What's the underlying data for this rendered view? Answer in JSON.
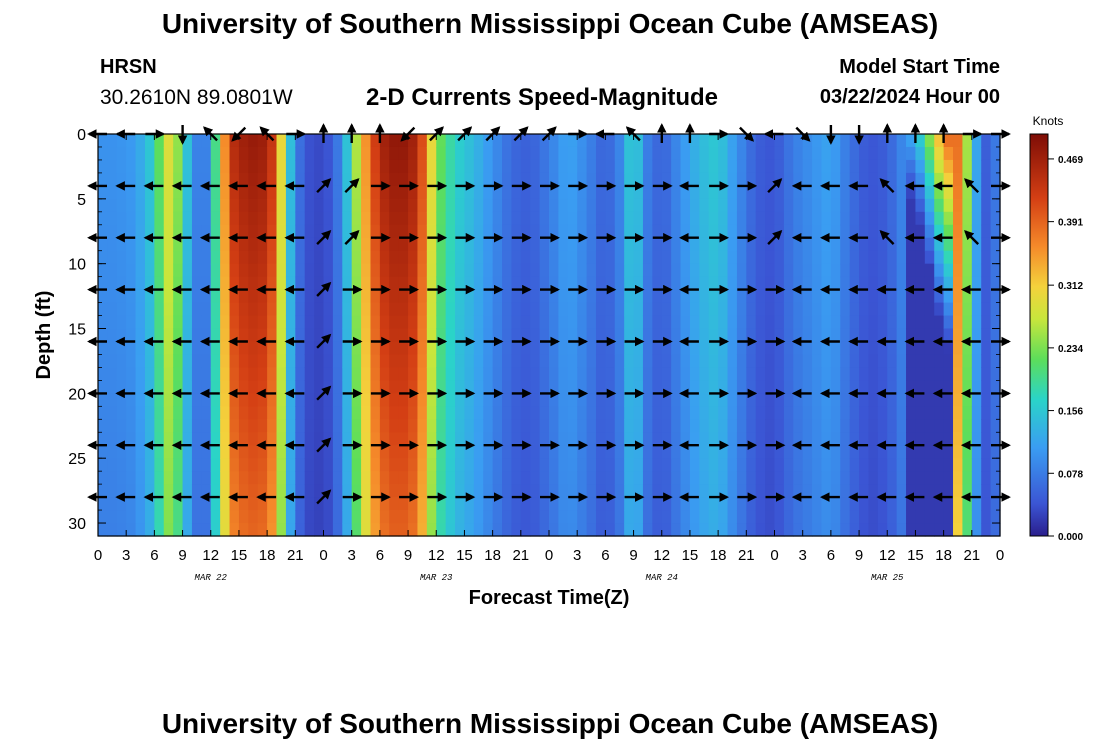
{
  "header": {
    "title": "University of Southern Mississippi Ocean Cube (AMSEAS)",
    "station": "HRSN",
    "coords": "30.2610N  89.0801W",
    "subtitle": "2-D Currents Speed-Magnitude",
    "model_start_label": "Model Start Time",
    "model_start_value": "03/22/2024 Hour 00"
  },
  "footer": {
    "title": "University of Southern Mississippi Ocean Cube (AMSEAS)"
  },
  "chart_data": {
    "type": "heatmap",
    "title": "2-D Currents Speed-Magnitude",
    "xlabel": "Forecast Time(Z)",
    "ylabel": "Depth (ft)",
    "xlim": [
      0,
      96
    ],
    "ylim": [
      31,
      0
    ],
    "x_tick_values": [
      0,
      3,
      6,
      9,
      12,
      15,
      18,
      21,
      24,
      27,
      30,
      33,
      36,
      39,
      42,
      45,
      48,
      51,
      54,
      57,
      60,
      63,
      66,
      69,
      72,
      75,
      78,
      81,
      84,
      87,
      90,
      93,
      96
    ],
    "x_tick_labels": [
      "0",
      "3",
      "6",
      "9",
      "12",
      "15",
      "18",
      "21",
      "0",
      "3",
      "6",
      "9",
      "12",
      "15",
      "18",
      "21",
      "0",
      "3",
      "6",
      "9",
      "12",
      "15",
      "18",
      "21",
      "0",
      "3",
      "6",
      "9",
      "12",
      "15",
      "18",
      "21",
      "0"
    ],
    "y_tick_values": [
      0,
      5,
      10,
      15,
      20,
      25,
      30
    ],
    "y_tick_labels": [
      "0",
      "5",
      "10",
      "15",
      "20",
      "25",
      "30"
    ],
    "day_labels": [
      {
        "label": "MAR 22",
        "x": 12
      },
      {
        "label": "MAR 23",
        "x": 36
      },
      {
        "label": "MAR 24",
        "x": 60
      },
      {
        "label": "MAR 25",
        "x": 84
      }
    ],
    "colorbar": {
      "unit": "Knots",
      "min": 0,
      "max": 0.5,
      "tick_values": [
        0.0,
        0.078,
        0.156,
        0.234,
        0.312,
        0.391,
        0.469
      ],
      "tick_labels": [
        "0.000",
        "0.078",
        "0.156",
        "0.234",
        "0.312",
        "0.391",
        "0.469"
      ]
    },
    "surface_speed_knots": [
      {
        "hour": 0,
        "speed": 0.1
      },
      {
        "hour": 2,
        "speed": 0.1
      },
      {
        "hour": 4,
        "speed": 0.11
      },
      {
        "hour": 6,
        "speed": 0.17
      },
      {
        "hour": 7,
        "speed": 0.27
      },
      {
        "hour": 8,
        "speed": 0.31
      },
      {
        "hour": 9,
        "speed": 0.18
      },
      {
        "hour": 10,
        "speed": 0.12
      },
      {
        "hour": 11,
        "speed": 0.05
      },
      {
        "hour": 12,
        "speed": 0.12
      },
      {
        "hour": 13,
        "speed": 0.28
      },
      {
        "hour": 14,
        "speed": 0.44
      },
      {
        "hour": 16,
        "speed": 0.48
      },
      {
        "hour": 18,
        "speed": 0.47
      },
      {
        "hour": 19,
        "speed": 0.4
      },
      {
        "hour": 20,
        "speed": 0.2
      },
      {
        "hour": 21,
        "speed": 0.09
      },
      {
        "hour": 22,
        "speed": 0.04
      },
      {
        "hour": 24,
        "speed": 0.03
      },
      {
        "hour": 25,
        "speed": 0.05
      },
      {
        "hour": 26,
        "speed": 0.1
      },
      {
        "hour": 27,
        "speed": 0.2
      },
      {
        "hour": 28,
        "speed": 0.32
      },
      {
        "hour": 30,
        "speed": 0.46
      },
      {
        "hour": 32,
        "speed": 0.49
      },
      {
        "hour": 34,
        "speed": 0.46
      },
      {
        "hour": 35,
        "speed": 0.36
      },
      {
        "hour": 36,
        "speed": 0.24
      },
      {
        "hour": 38,
        "speed": 0.17
      },
      {
        "hour": 40,
        "speed": 0.14
      },
      {
        "hour": 42,
        "speed": 0.1
      },
      {
        "hour": 44,
        "speed": 0.06
      },
      {
        "hour": 46,
        "speed": 0.05
      },
      {
        "hour": 48,
        "speed": 0.08
      },
      {
        "hour": 50,
        "speed": 0.12
      },
      {
        "hour": 52,
        "speed": 0.09
      },
      {
        "hour": 54,
        "speed": 0.05
      },
      {
        "hour": 56,
        "speed": 0.1
      },
      {
        "hour": 57,
        "speed": 0.2
      },
      {
        "hour": 58,
        "speed": 0.09
      },
      {
        "hour": 60,
        "speed": 0.05
      },
      {
        "hour": 62,
        "speed": 0.1
      },
      {
        "hour": 64,
        "speed": 0.14
      },
      {
        "hour": 66,
        "speed": 0.16
      },
      {
        "hour": 68,
        "speed": 0.1
      },
      {
        "hour": 70,
        "speed": 0.05
      },
      {
        "hour": 72,
        "speed": 0.04
      },
      {
        "hour": 74,
        "speed": 0.08
      },
      {
        "hour": 76,
        "speed": 0.1
      },
      {
        "hour": 78,
        "speed": 0.12
      },
      {
        "hour": 80,
        "speed": 0.07
      },
      {
        "hour": 82,
        "speed": 0.04
      },
      {
        "hour": 84,
        "speed": 0.05
      },
      {
        "hour": 86,
        "speed": 0.1
      },
      {
        "hour": 88,
        "speed": 0.19
      },
      {
        "hour": 89,
        "speed": 0.3
      },
      {
        "hour": 91,
        "speed": 0.42
      },
      {
        "hour": 92,
        "speed": 0.34
      },
      {
        "hour": 93,
        "speed": 0.17
      },
      {
        "hour": 94,
        "speed": 0.07
      },
      {
        "hour": 95,
        "speed": 0.03
      },
      {
        "hour": 96,
        "speed": 0.12
      }
    ],
    "vector_depths_ft": [
      0,
      4,
      8,
      12,
      16,
      20,
      24,
      28
    ],
    "vector_directions_deg": [
      [
        270,
        270,
        90,
        180,
        315,
        225,
        315,
        90,
        0,
        0,
        0,
        225,
        45,
        45,
        45,
        45,
        45,
        90,
        270,
        315,
        0,
        0,
        90,
        135,
        270,
        135,
        180,
        180,
        0,
        0,
        0,
        90,
        90
      ],
      [
        270,
        270,
        270,
        270,
        270,
        270,
        270,
        270,
        45,
        45,
        90,
        90,
        90,
        90,
        90,
        90,
        90,
        90,
        90,
        90,
        90,
        270,
        90,
        90,
        45,
        270,
        270,
        270,
        315,
        270,
        270,
        315,
        90
      ],
      [
        270,
        270,
        270,
        270,
        270,
        270,
        270,
        270,
        45,
        45,
        90,
        90,
        90,
        90,
        90,
        90,
        90,
        90,
        90,
        90,
        90,
        270,
        90,
        90,
        45,
        270,
        270,
        270,
        315,
        270,
        270,
        315,
        90
      ],
      [
        270,
        270,
        270,
        270,
        270,
        270,
        270,
        270,
        45,
        90,
        90,
        90,
        90,
        90,
        90,
        90,
        90,
        90,
        90,
        90,
        90,
        270,
        90,
        90,
        90,
        270,
        270,
        270,
        270,
        270,
        270,
        270,
        90
      ],
      [
        270,
        270,
        270,
        270,
        270,
        270,
        270,
        270,
        45,
        90,
        90,
        90,
        90,
        90,
        90,
        90,
        90,
        90,
        90,
        90,
        90,
        270,
        90,
        90,
        90,
        270,
        270,
        270,
        270,
        270,
        270,
        270,
        90
      ],
      [
        270,
        270,
        270,
        270,
        270,
        270,
        270,
        270,
        45,
        90,
        90,
        90,
        90,
        90,
        90,
        90,
        90,
        90,
        90,
        90,
        90,
        270,
        90,
        90,
        90,
        270,
        270,
        270,
        270,
        270,
        270,
        270,
        90
      ],
      [
        270,
        270,
        270,
        270,
        270,
        270,
        270,
        270,
        45,
        90,
        90,
        90,
        90,
        90,
        90,
        90,
        90,
        90,
        90,
        90,
        90,
        270,
        90,
        90,
        90,
        270,
        270,
        270,
        270,
        270,
        270,
        270,
        90
      ],
      [
        270,
        270,
        270,
        270,
        270,
        270,
        270,
        270,
        45,
        90,
        90,
        90,
        90,
        90,
        90,
        90,
        90,
        90,
        90,
        90,
        90,
        270,
        90,
        90,
        90,
        270,
        270,
        270,
        270,
        270,
        270,
        270,
        90
      ]
    ]
  }
}
